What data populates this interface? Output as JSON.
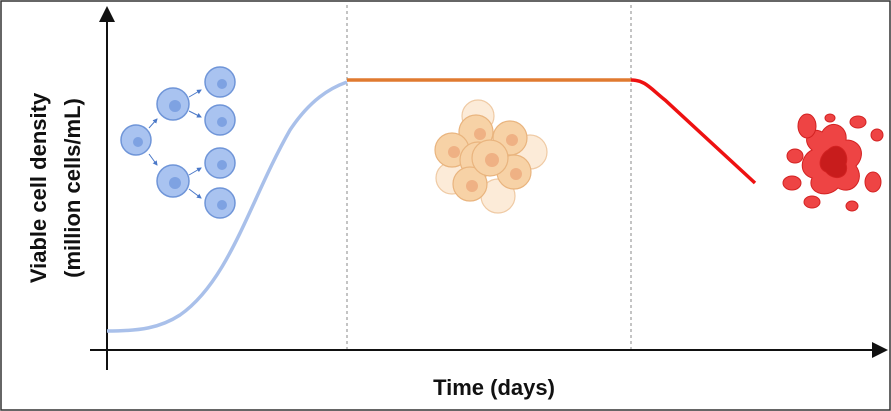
{
  "axes": {
    "y_label": [
      "Viable cell density",
      "(million cells/mL)"
    ],
    "x_label": "Time (days)"
  }
}
